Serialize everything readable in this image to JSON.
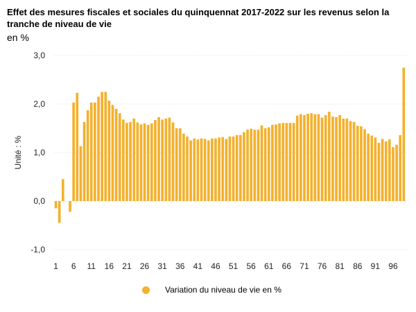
{
  "chart_data": {
    "type": "bar",
    "title": "Effet des mesures fiscales et sociales du quinquennat 2017-2022 sur les revenus selon la tranche de niveau de vie",
    "subtitle": "en %",
    "ylabel": "Unité : %",
    "ylim": [
      -1.0,
      3.0
    ],
    "y_ticks": [
      "3,0",
      "2,0",
      "1,0",
      "0,0",
      "-1,0"
    ],
    "y_tick_values": [
      3.0,
      2.0,
      1.0,
      0.0,
      -1.0
    ],
    "x_tick_labels": [
      "1",
      "6",
      "11",
      "16",
      "21",
      "26",
      "31",
      "36",
      "41",
      "46",
      "51",
      "56",
      "61",
      "66",
      "71",
      "76",
      "81",
      "86",
      "91",
      "96"
    ],
    "legend_position": "bottom",
    "grid": true,
    "color": "#F3B12E",
    "series": [
      {
        "name": "Variation du niveau de vie en %",
        "x": [
          1,
          2,
          3,
          4,
          5,
          6,
          7,
          8,
          9,
          10,
          11,
          12,
          13,
          14,
          15,
          16,
          17,
          18,
          19,
          20,
          21,
          22,
          23,
          24,
          25,
          26,
          27,
          28,
          29,
          30,
          31,
          32,
          33,
          34,
          35,
          36,
          37,
          38,
          39,
          40,
          41,
          42,
          43,
          44,
          45,
          46,
          47,
          48,
          49,
          50,
          51,
          52,
          53,
          54,
          55,
          56,
          57,
          58,
          59,
          60,
          61,
          62,
          63,
          64,
          65,
          66,
          67,
          68,
          69,
          70,
          71,
          72,
          73,
          74,
          75,
          76,
          77,
          78,
          79,
          80,
          81,
          82,
          83,
          84,
          85,
          86,
          87,
          88,
          89,
          90,
          91,
          92,
          93,
          94,
          95,
          96,
          97,
          98,
          99,
          100
        ],
        "values": [
          -0.15,
          -0.45,
          0.45,
          0,
          -0.22,
          2.03,
          2.23,
          1.13,
          1.63,
          1.87,
          2.03,
          2.03,
          2.15,
          2.25,
          2.25,
          2.07,
          1.98,
          1.9,
          1.81,
          1.68,
          1.61,
          1.63,
          1.7,
          1.62,
          1.58,
          1.6,
          1.57,
          1.6,
          1.67,
          1.73,
          1.68,
          1.7,
          1.72,
          1.62,
          1.5,
          1.5,
          1.39,
          1.33,
          1.25,
          1.29,
          1.27,
          1.29,
          1.28,
          1.25,
          1.29,
          1.29,
          1.31,
          1.32,
          1.28,
          1.33,
          1.33,
          1.36,
          1.36,
          1.42,
          1.47,
          1.49,
          1.47,
          1.47,
          1.56,
          1.5,
          1.52,
          1.57,
          1.58,
          1.6,
          1.61,
          1.61,
          1.61,
          1.61,
          1.76,
          1.79,
          1.77,
          1.8,
          1.81,
          1.79,
          1.79,
          1.72,
          1.77,
          1.84,
          1.74,
          1.73,
          1.77,
          1.7,
          1.7,
          1.65,
          1.63,
          1.55,
          1.54,
          1.48,
          1.39,
          1.35,
          1.31,
          1.2,
          1.28,
          1.23,
          1.27,
          1.11,
          1.16,
          1.36,
          2.75,
          0
        ]
      }
    ]
  }
}
